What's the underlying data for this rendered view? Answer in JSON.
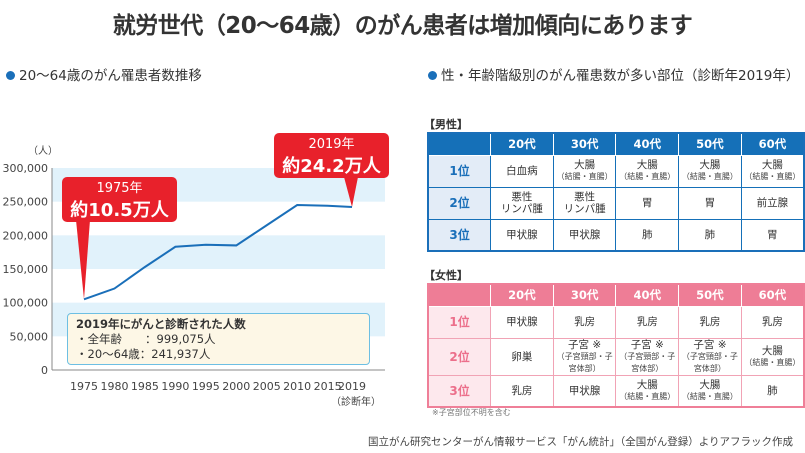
{
  "title": "就労世代（20〜64歳）のがん患者は増加傾向にあります",
  "left_heading": "20〜64歳のがん罹患者数推移",
  "right_heading": "性・年齢階級別のがん罹患数が多い部位（診断年2019年）",
  "chart_data": {
    "type": "line",
    "ylabel": "（人）",
    "xlabel": "（診断年）",
    "x": [
      "1975",
      "1980",
      "1985",
      "1990",
      "1995",
      "2000",
      "2005",
      "2010",
      "2015",
      "2019"
    ],
    "values": [
      105000,
      121000,
      153000,
      183000,
      186000,
      185000,
      215000,
      245000,
      244000,
      242000
    ],
    "ylim": [
      0,
      300000
    ],
    "yticks": [
      "0",
      "50,000",
      "100,000",
      "150,000",
      "200,000",
      "250,000",
      "300,000"
    ],
    "line_color": "#1a6fb9",
    "callouts": [
      {
        "year": "1975年",
        "value": "約10.5万人"
      },
      {
        "year": "2019年",
        "value": "約24.2万人"
      }
    ],
    "infobox": {
      "heading": "2019年にがんと診断された人数",
      "lines": [
        "・全年齢　　：999,075人",
        "・20〜64歳：241,937人"
      ]
    }
  },
  "tables": {
    "headers": [
      "20代",
      "30代",
      "40代",
      "50代",
      "60代"
    ],
    "male": {
      "label": "【男性】",
      "rows": [
        {
          "rank": "1位",
          "cells": [
            [
              "白血病",
              ""
            ],
            [
              "大腸",
              "（結腸・直腸）"
            ],
            [
              "大腸",
              "（結腸・直腸）"
            ],
            [
              "大腸",
              "（結腸・直腸）"
            ],
            [
              "大腸",
              "（結腸・直腸）"
            ]
          ]
        },
        {
          "rank": "2位",
          "cells": [
            [
              "悪性\nリンパ腫",
              ""
            ],
            [
              "悪性\nリンパ腫",
              ""
            ],
            [
              "胃",
              ""
            ],
            [
              "胃",
              ""
            ],
            [
              "前立腺",
              ""
            ]
          ]
        },
        {
          "rank": "3位",
          "cells": [
            [
              "甲状腺",
              ""
            ],
            [
              "甲状腺",
              ""
            ],
            [
              "肺",
              ""
            ],
            [
              "肺",
              ""
            ],
            [
              "胃",
              ""
            ]
          ]
        }
      ]
    },
    "female": {
      "label": "【女性】",
      "rows": [
        {
          "rank": "1位",
          "cells": [
            [
              "甲状腺",
              ""
            ],
            [
              "乳房",
              ""
            ],
            [
              "乳房",
              ""
            ],
            [
              "乳房",
              ""
            ],
            [
              "乳房",
              ""
            ]
          ]
        },
        {
          "rank": "2位",
          "cells": [
            [
              "卵巣",
              ""
            ],
            [
              "子宮 ※",
              "（子宮頸部・子宮体部）"
            ],
            [
              "子宮 ※",
              "（子宮頸部・子宮体部）"
            ],
            [
              "子宮 ※",
              "（子宮頸部・子宮体部）"
            ],
            [
              "大腸",
              "（結腸・直腸）"
            ]
          ]
        },
        {
          "rank": "3位",
          "cells": [
            [
              "乳房",
              ""
            ],
            [
              "甲状腺",
              ""
            ],
            [
              "大腸",
              "（結腸・直腸）"
            ],
            [
              "大腸",
              "（結腸・直腸）"
            ],
            [
              "肺",
              ""
            ]
          ]
        }
      ]
    },
    "note": "※子宮部位不明を含む"
  },
  "source": "国立がん研究センターがん情報サービス「がん統計」（全国がん登録）よりアフラック作成"
}
